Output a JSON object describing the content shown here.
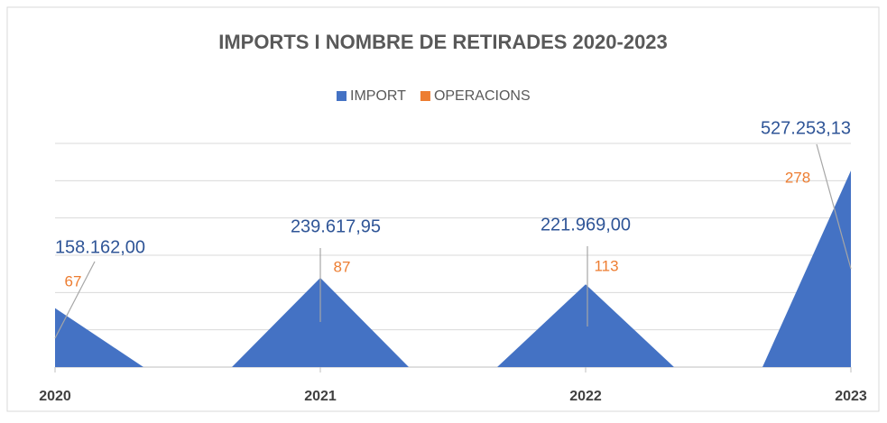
{
  "chart_data": {
    "type": "area",
    "title": "IMPORTS I NOMBRE DE RETIRADES 2020-2023",
    "categories": [
      "2020",
      null,
      null,
      "2021",
      null,
      null,
      "2022",
      null,
      null,
      "2023"
    ],
    "series": [
      {
        "name": "IMPORT",
        "color": "#4472c4",
        "values": [
          158162,
          0,
          0,
          239617.95,
          0,
          0,
          221969,
          0,
          0,
          527253.13
        ],
        "value_labels": [
          "158.162,00",
          null,
          null,
          "239.617,95",
          null,
          null,
          "221.969,00",
          null,
          null,
          "527.253,13"
        ]
      },
      {
        "name": "OPERACIONS",
        "color": "#ed7d31",
        "axis": "y2",
        "values": [
          67,
          null,
          null,
          87,
          null,
          null,
          113,
          null,
          null,
          278
        ]
      }
    ],
    "ylim": [
      0,
      600000
    ],
    "yticks": [
      0,
      100000,
      200000,
      300000,
      400000,
      500000,
      600000
    ],
    "y2lim": [
      0,
      600
    ],
    "grid": true,
    "legend": "top"
  }
}
